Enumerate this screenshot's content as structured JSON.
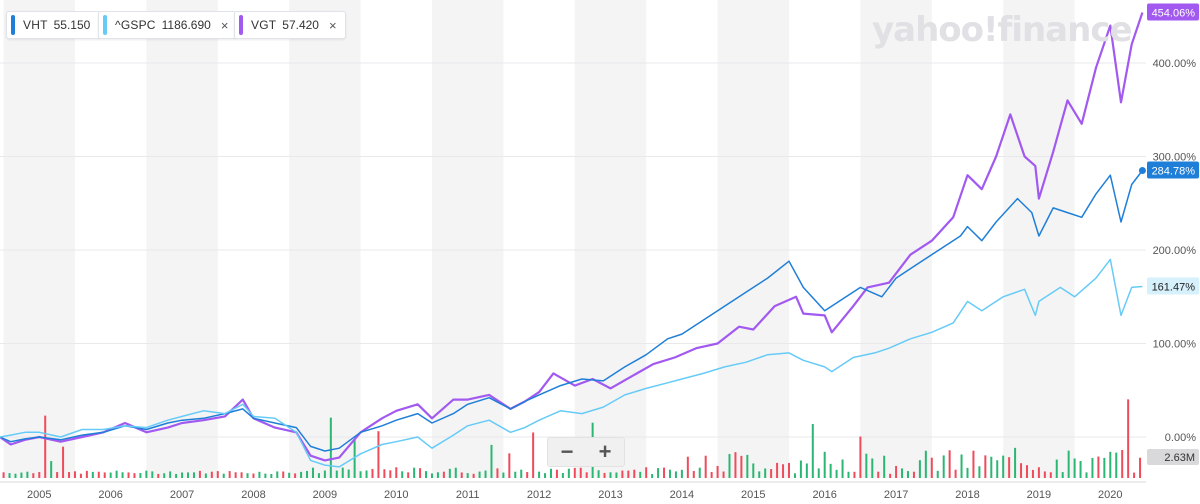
{
  "legend": [
    {
      "symbol": "VHT",
      "value": "55.150",
      "color": "#1f7fd8",
      "closable": false
    },
    {
      "symbol": "^GSPC",
      "value": "1186.690",
      "color": "#66cbf7",
      "closable": true
    },
    {
      "symbol": "VGT",
      "value": "57.420",
      "color": "#a259f0",
      "closable": true
    }
  ],
  "watermark": "yahoo!finance",
  "zoom": {
    "minus": "−",
    "plus": "+"
  },
  "close_glyph": "×",
  "chart_data": {
    "type": "line",
    "x_ticks": [
      "2005",
      "2006",
      "2007",
      "2008",
      "2009",
      "2010",
      "2011",
      "2012",
      "2013",
      "2014",
      "2015",
      "2016",
      "2017",
      "2018",
      "2019",
      "2020"
    ],
    "y_ticks": [
      "0.00%",
      "100.00%",
      "200.00%",
      "300.00%",
      "400.00%"
    ],
    "ylim": [
      -30,
      460
    ],
    "xlim": [
      2004.45,
      2020.5
    ],
    "grid": true,
    "legend_position": "top-left",
    "series": [
      {
        "name": "VGT",
        "color": "#a259f0",
        "last_label": "454.06%",
        "points": [
          [
            2004.45,
            0
          ],
          [
            2004.6,
            -8
          ],
          [
            2004.8,
            -3
          ],
          [
            2005.0,
            0
          ],
          [
            2005.3,
            -5
          ],
          [
            2005.6,
            0
          ],
          [
            2005.9,
            5
          ],
          [
            2006.2,
            15
          ],
          [
            2006.5,
            5
          ],
          [
            2006.8,
            10
          ],
          [
            2007.0,
            15
          ],
          [
            2007.3,
            18
          ],
          [
            2007.6,
            22
          ],
          [
            2007.85,
            40
          ],
          [
            2008.0,
            20
          ],
          [
            2008.3,
            10
          ],
          [
            2008.6,
            5
          ],
          [
            2008.8,
            -20
          ],
          [
            2009.0,
            -25
          ],
          [
            2009.2,
            -22
          ],
          [
            2009.5,
            5
          ],
          [
            2009.8,
            20
          ],
          [
            2010.0,
            28
          ],
          [
            2010.3,
            35
          ],
          [
            2010.5,
            20
          ],
          [
            2010.8,
            40
          ],
          [
            2011.0,
            40
          ],
          [
            2011.3,
            45
          ],
          [
            2011.6,
            30
          ],
          [
            2011.8,
            38
          ],
          [
            2012.0,
            48
          ],
          [
            2012.2,
            68
          ],
          [
            2012.5,
            55
          ],
          [
            2012.75,
            62
          ],
          [
            2013.0,
            52
          ],
          [
            2013.3,
            65
          ],
          [
            2013.6,
            78
          ],
          [
            2013.9,
            85
          ],
          [
            2014.2,
            95
          ],
          [
            2014.5,
            100
          ],
          [
            2014.8,
            118
          ],
          [
            2015.0,
            115
          ],
          [
            2015.3,
            140
          ],
          [
            2015.6,
            150
          ],
          [
            2015.7,
            132
          ],
          [
            2016.0,
            130
          ],
          [
            2016.1,
            112
          ],
          [
            2016.4,
            140
          ],
          [
            2016.6,
            160
          ],
          [
            2016.9,
            165
          ],
          [
            2017.2,
            195
          ],
          [
            2017.5,
            210
          ],
          [
            2017.8,
            235
          ],
          [
            2018.0,
            280
          ],
          [
            2018.2,
            265
          ],
          [
            2018.4,
            300
          ],
          [
            2018.6,
            345
          ],
          [
            2018.8,
            300
          ],
          [
            2018.95,
            290
          ],
          [
            2019.0,
            255
          ],
          [
            2019.2,
            305
          ],
          [
            2019.4,
            360
          ],
          [
            2019.6,
            335
          ],
          [
            2019.8,
            395
          ],
          [
            2020.0,
            440
          ],
          [
            2020.15,
            358
          ],
          [
            2020.3,
            420
          ],
          [
            2020.45,
            454
          ]
        ]
      },
      {
        "name": "VHT",
        "color": "#1f7fd8",
        "last_label": "284.78%",
        "points": [
          [
            2004.45,
            0
          ],
          [
            2004.6,
            -5
          ],
          [
            2004.8,
            -2
          ],
          [
            2005.0,
            0
          ],
          [
            2005.3,
            -3
          ],
          [
            2005.6,
            2
          ],
          [
            2005.9,
            5
          ],
          [
            2006.2,
            12
          ],
          [
            2006.5,
            8
          ],
          [
            2006.8,
            15
          ],
          [
            2007.0,
            18
          ],
          [
            2007.3,
            20
          ],
          [
            2007.6,
            25
          ],
          [
            2007.85,
            30
          ],
          [
            2008.0,
            20
          ],
          [
            2008.3,
            15
          ],
          [
            2008.6,
            10
          ],
          [
            2008.8,
            -10
          ],
          [
            2009.0,
            -15
          ],
          [
            2009.2,
            -12
          ],
          [
            2009.5,
            5
          ],
          [
            2009.8,
            12
          ],
          [
            2010.0,
            18
          ],
          [
            2010.3,
            25
          ],
          [
            2010.5,
            15
          ],
          [
            2010.8,
            25
          ],
          [
            2011.0,
            35
          ],
          [
            2011.3,
            42
          ],
          [
            2011.6,
            30
          ],
          [
            2011.8,
            38
          ],
          [
            2012.0,
            45
          ],
          [
            2012.3,
            55
          ],
          [
            2012.6,
            62
          ],
          [
            2012.9,
            60
          ],
          [
            2013.2,
            75
          ],
          [
            2013.5,
            88
          ],
          [
            2013.8,
            105
          ],
          [
            2014.0,
            110
          ],
          [
            2014.3,
            125
          ],
          [
            2014.6,
            140
          ],
          [
            2014.9,
            155
          ],
          [
            2015.2,
            170
          ],
          [
            2015.5,
            188
          ],
          [
            2015.7,
            160
          ],
          [
            2016.0,
            135
          ],
          [
            2016.2,
            145
          ],
          [
            2016.5,
            160
          ],
          [
            2016.8,
            150
          ],
          [
            2017.0,
            170
          ],
          [
            2017.3,
            185
          ],
          [
            2017.6,
            200
          ],
          [
            2017.9,
            215
          ],
          [
            2018.0,
            225
          ],
          [
            2018.2,
            210
          ],
          [
            2018.4,
            230
          ],
          [
            2018.7,
            255
          ],
          [
            2018.9,
            240
          ],
          [
            2019.0,
            215
          ],
          [
            2019.2,
            245
          ],
          [
            2019.4,
            240
          ],
          [
            2019.6,
            235
          ],
          [
            2019.8,
            260
          ],
          [
            2020.0,
            280
          ],
          [
            2020.15,
            230
          ],
          [
            2020.3,
            270
          ],
          [
            2020.45,
            285
          ]
        ]
      },
      {
        "name": "^GSPC",
        "color": "#66cbf7",
        "last_label": "161.47%",
        "points": [
          [
            2004.45,
            0
          ],
          [
            2004.6,
            2
          ],
          [
            2004.8,
            5
          ],
          [
            2005.0,
            5
          ],
          [
            2005.3,
            0
          ],
          [
            2005.6,
            8
          ],
          [
            2005.9,
            8
          ],
          [
            2006.2,
            12
          ],
          [
            2006.5,
            10
          ],
          [
            2006.8,
            18
          ],
          [
            2007.0,
            22
          ],
          [
            2007.3,
            28
          ],
          [
            2007.6,
            25
          ],
          [
            2007.85,
            35
          ],
          [
            2008.0,
            22
          ],
          [
            2008.3,
            20
          ],
          [
            2008.6,
            5
          ],
          [
            2008.8,
            -25
          ],
          [
            2009.0,
            -30
          ],
          [
            2009.2,
            -32
          ],
          [
            2009.5,
            -18
          ],
          [
            2009.8,
            -8
          ],
          [
            2010.0,
            -5
          ],
          [
            2010.3,
            0
          ],
          [
            2010.5,
            -12
          ],
          [
            2010.8,
            2
          ],
          [
            2011.0,
            12
          ],
          [
            2011.3,
            18
          ],
          [
            2011.6,
            5
          ],
          [
            2011.8,
            10
          ],
          [
            2012.0,
            18
          ],
          [
            2012.3,
            28
          ],
          [
            2012.6,
            25
          ],
          [
            2012.9,
            32
          ],
          [
            2013.2,
            45
          ],
          [
            2013.5,
            52
          ],
          [
            2013.8,
            58
          ],
          [
            2014.0,
            62
          ],
          [
            2014.3,
            68
          ],
          [
            2014.6,
            75
          ],
          [
            2014.9,
            80
          ],
          [
            2015.2,
            88
          ],
          [
            2015.5,
            90
          ],
          [
            2015.7,
            82
          ],
          [
            2016.0,
            75
          ],
          [
            2016.1,
            70
          ],
          [
            2016.4,
            85
          ],
          [
            2016.7,
            90
          ],
          [
            2016.9,
            95
          ],
          [
            2017.2,
            105
          ],
          [
            2017.5,
            112
          ],
          [
            2017.8,
            122
          ],
          [
            2018.0,
            145
          ],
          [
            2018.2,
            135
          ],
          [
            2018.5,
            150
          ],
          [
            2018.8,
            158
          ],
          [
            2018.95,
            130
          ],
          [
            2019.0,
            145
          ],
          [
            2019.3,
            160
          ],
          [
            2019.5,
            150
          ],
          [
            2019.8,
            170
          ],
          [
            2020.0,
            190
          ],
          [
            2020.15,
            130
          ],
          [
            2020.3,
            160
          ],
          [
            2020.45,
            161
          ]
        ]
      }
    ],
    "volume_label": "2.63M"
  }
}
